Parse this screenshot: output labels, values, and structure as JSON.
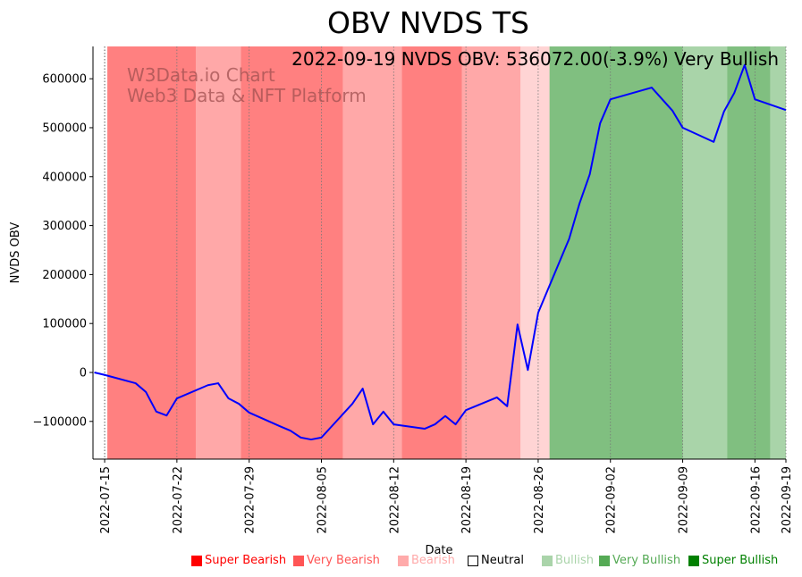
{
  "chart_data": {
    "type": "line",
    "title": "OBV NVDS TS",
    "subtitle": "2022-09-19 NVDS OBV: 536072.00(-3.9%) Very Bullish",
    "watermark": [
      "W3Data.io Chart",
      "Web3 Data & NFT Platform"
    ],
    "xlabel": "Date",
    "ylabel": "NVDS OBV",
    "x_origin": "2022-07-15",
    "xlim_days": [
      -1.13,
      66
    ],
    "ylim": [
      -177000,
      666000
    ],
    "x_ticks": [
      {
        "day": 0,
        "label": "2022-07-15"
      },
      {
        "day": 7,
        "label": "2022-07-22"
      },
      {
        "day": 14,
        "label": "2022-07-29"
      },
      {
        "day": 21,
        "label": "2022-08-05"
      },
      {
        "day": 28,
        "label": "2022-08-12"
      },
      {
        "day": 35,
        "label": "2022-08-19"
      },
      {
        "day": 42,
        "label": "2022-08-26"
      },
      {
        "day": 49,
        "label": "2022-09-02"
      },
      {
        "day": 56,
        "label": "2022-09-09"
      },
      {
        "day": 63,
        "label": "2022-09-16"
      },
      {
        "day": 66,
        "label": "2022-09-19"
      }
    ],
    "y_ticks": [
      {
        "value": -100000,
        "label": "−100000"
      },
      {
        "value": 0,
        "label": "0"
      },
      {
        "value": 100000,
        "label": "100000"
      },
      {
        "value": 200000,
        "label": "200000"
      },
      {
        "value": 300000,
        "label": "300000"
      },
      {
        "value": 400000,
        "label": "400000"
      },
      {
        "value": 500000,
        "label": "500000"
      },
      {
        "value": 600000,
        "label": "600000"
      }
    ],
    "series": [
      {
        "name": "NVDS OBV",
        "color": "#0000ff",
        "points": [
          [
            -1,
            0
          ],
          [
            0,
            -5000
          ],
          [
            3,
            -22000
          ],
          [
            4,
            -40000
          ],
          [
            5,
            -80000
          ],
          [
            6,
            -88000
          ],
          [
            7,
            -53000
          ],
          [
            10,
            -26000
          ],
          [
            11,
            -22000
          ],
          [
            12,
            -53000
          ],
          [
            13,
            -64000
          ],
          [
            14,
            -82000
          ],
          [
            17,
            -110000
          ],
          [
            18,
            -119000
          ],
          [
            19,
            -133000
          ],
          [
            20,
            -137000
          ],
          [
            21,
            -133000
          ],
          [
            24,
            -64000
          ],
          [
            25,
            -33000
          ],
          [
            26,
            -106000
          ],
          [
            27,
            -80000
          ],
          [
            28,
            -106000
          ],
          [
            31,
            -115000
          ],
          [
            32,
            -106000
          ],
          [
            33,
            -89000
          ],
          [
            34,
            -106000
          ],
          [
            35,
            -77000
          ],
          [
            38,
            -51000
          ],
          [
            39,
            -69000
          ],
          [
            40,
            98000
          ],
          [
            41,
            5000
          ],
          [
            42,
            122000
          ],
          [
            45,
            273000
          ],
          [
            46,
            345000
          ],
          [
            47,
            405000
          ],
          [
            48,
            509000
          ],
          [
            49,
            558000
          ],
          [
            53,
            582000
          ],
          [
            55,
            535000
          ],
          [
            56,
            500000
          ],
          [
            59,
            471000
          ],
          [
            60,
            533000
          ],
          [
            61,
            571000
          ],
          [
            62,
            628000
          ],
          [
            63,
            558000
          ],
          [
            66,
            536072
          ]
        ]
      }
    ],
    "bands": [
      {
        "from": 0.26,
        "to": 8.83,
        "level": "Super Bearish"
      },
      {
        "from": 8.83,
        "to": 13.2,
        "level": "Very Bearish"
      },
      {
        "from": 13.2,
        "to": 23.1,
        "level": "Super Bearish"
      },
      {
        "from": 23.1,
        "to": 28.8,
        "level": "Very Bearish"
      },
      {
        "from": 28.8,
        "to": 34.6,
        "level": "Super Bearish"
      },
      {
        "from": 34.6,
        "to": 40.3,
        "level": "Very Bearish"
      },
      {
        "from": 40.3,
        "to": 43.1,
        "level": "Bearish"
      },
      {
        "from": 43.1,
        "to": 56.0,
        "level": "Super Bullish"
      },
      {
        "from": 56.0,
        "to": 60.3,
        "level": "Very Bullish"
      },
      {
        "from": 60.3,
        "to": 64.5,
        "level": "Super Bullish"
      },
      {
        "from": 64.5,
        "to": 66.0,
        "level": "Very Bullish"
      }
    ],
    "legend": [
      {
        "label": "Super Bearish",
        "color": "#ff0000"
      },
      {
        "label": "Very Bearish",
        "color": "#ff5555"
      },
      {
        "label": "Bearish",
        "color": "#ffaaaa"
      },
      {
        "label": "Neutral",
        "color": "#000000"
      },
      {
        "label": "Bullish",
        "color": "#aad4aa"
      },
      {
        "label": "Very Bullish",
        "color": "#55aa55"
      },
      {
        "label": "Super Bullish",
        "color": "#008000"
      }
    ],
    "legend_placement": "bottom"
  }
}
